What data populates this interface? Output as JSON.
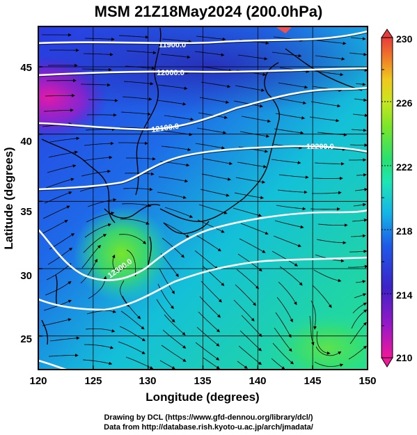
{
  "title": "MSM 21Z18May2024 (200.0hPa)",
  "axes": {
    "xlabel": "Longitude (degrees)",
    "ylabel": "Latitude  (degrees)",
    "xlim": [
      120,
      150
    ],
    "ylim": [
      22.5,
      48
    ],
    "xticks": [
      "120",
      "125",
      "130",
      "135",
      "140",
      "145",
      "150"
    ],
    "yticks": [
      "25",
      "30",
      "35",
      "40",
      "45"
    ]
  },
  "colorbar": {
    "range": [
      210,
      230
    ],
    "labels": [
      "230",
      "226",
      "222",
      "218",
      "214",
      "210"
    ],
    "colors": [
      "#f0189a",
      "#9a18c8",
      "#3b22c8",
      "#1e5ae8",
      "#14b4e6",
      "#1ee6b4",
      "#28e070",
      "#78e62a",
      "#c8e61e",
      "#f0c81e",
      "#f07828",
      "#e83c3c"
    ]
  },
  "contours": [
    {
      "label": "11900.0"
    },
    {
      "label": "12000.0"
    },
    {
      "label": "12100.0"
    },
    {
      "label": "12200.0"
    },
    {
      "label": "12300.0"
    }
  ],
  "credit": {
    "line1": "Drawing by DCL (https://www.gfd-dennou.org/library/dcl/)",
    "line2": "Data from http://database.rish.kyoto-u.ac.jp/arch/jmadata/"
  }
}
